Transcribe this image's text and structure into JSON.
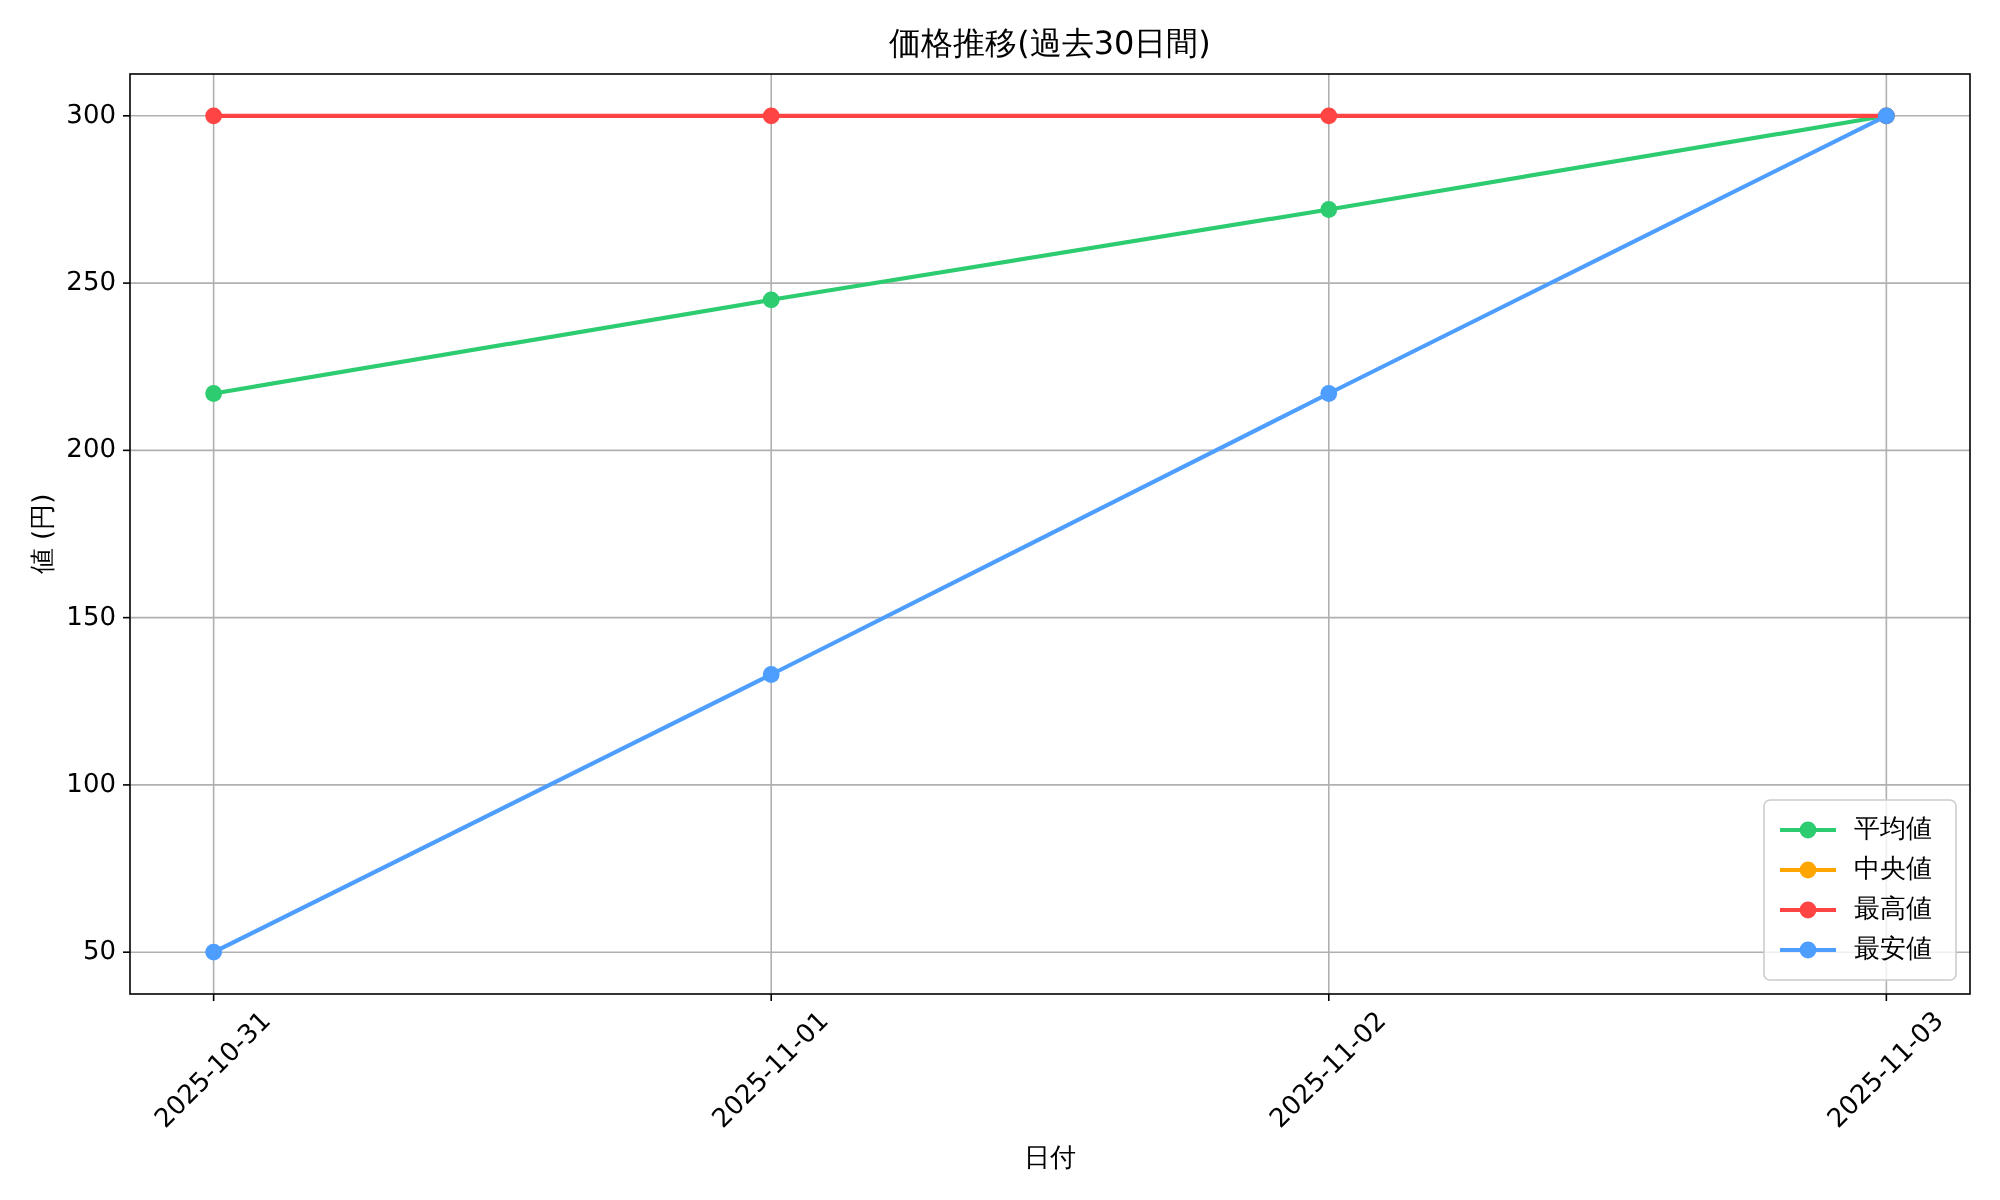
{
  "chart_data": {
    "type": "line",
    "title": "価格推移(過去30日間)",
    "xlabel": "日付",
    "ylabel": "値 (円)",
    "x": [
      "2025-10-31",
      "2025-11-01",
      "2025-11-02",
      "2025-11-03"
    ],
    "xlim": [
      "2025-10-30T20:24",
      "2025-11-03T03:36"
    ],
    "xticks": [
      "2025-10-31",
      "2025-11-01",
      "2025-11-02",
      "2025-11-03"
    ],
    "ylim": [
      37.5,
      312.5
    ],
    "yticks": [
      50,
      100,
      150,
      200,
      250,
      300
    ],
    "series": [
      {
        "name": "平均値",
        "color": "#2ecc71",
        "values": [
          217,
          245,
          272,
          300
        ]
      },
      {
        "name": "中央値",
        "color": "#ffa500",
        "values": [
          null,
          null,
          null,
          null
        ]
      },
      {
        "name": "最高値",
        "color": "#ff4444",
        "values": [
          300,
          300,
          300,
          300
        ]
      },
      {
        "name": "最安値",
        "color": "#4d9eff",
        "values": [
          50,
          133,
          217,
          300
        ]
      }
    ],
    "grid": true,
    "legend": "bottom right",
    "marker": "circle"
  }
}
